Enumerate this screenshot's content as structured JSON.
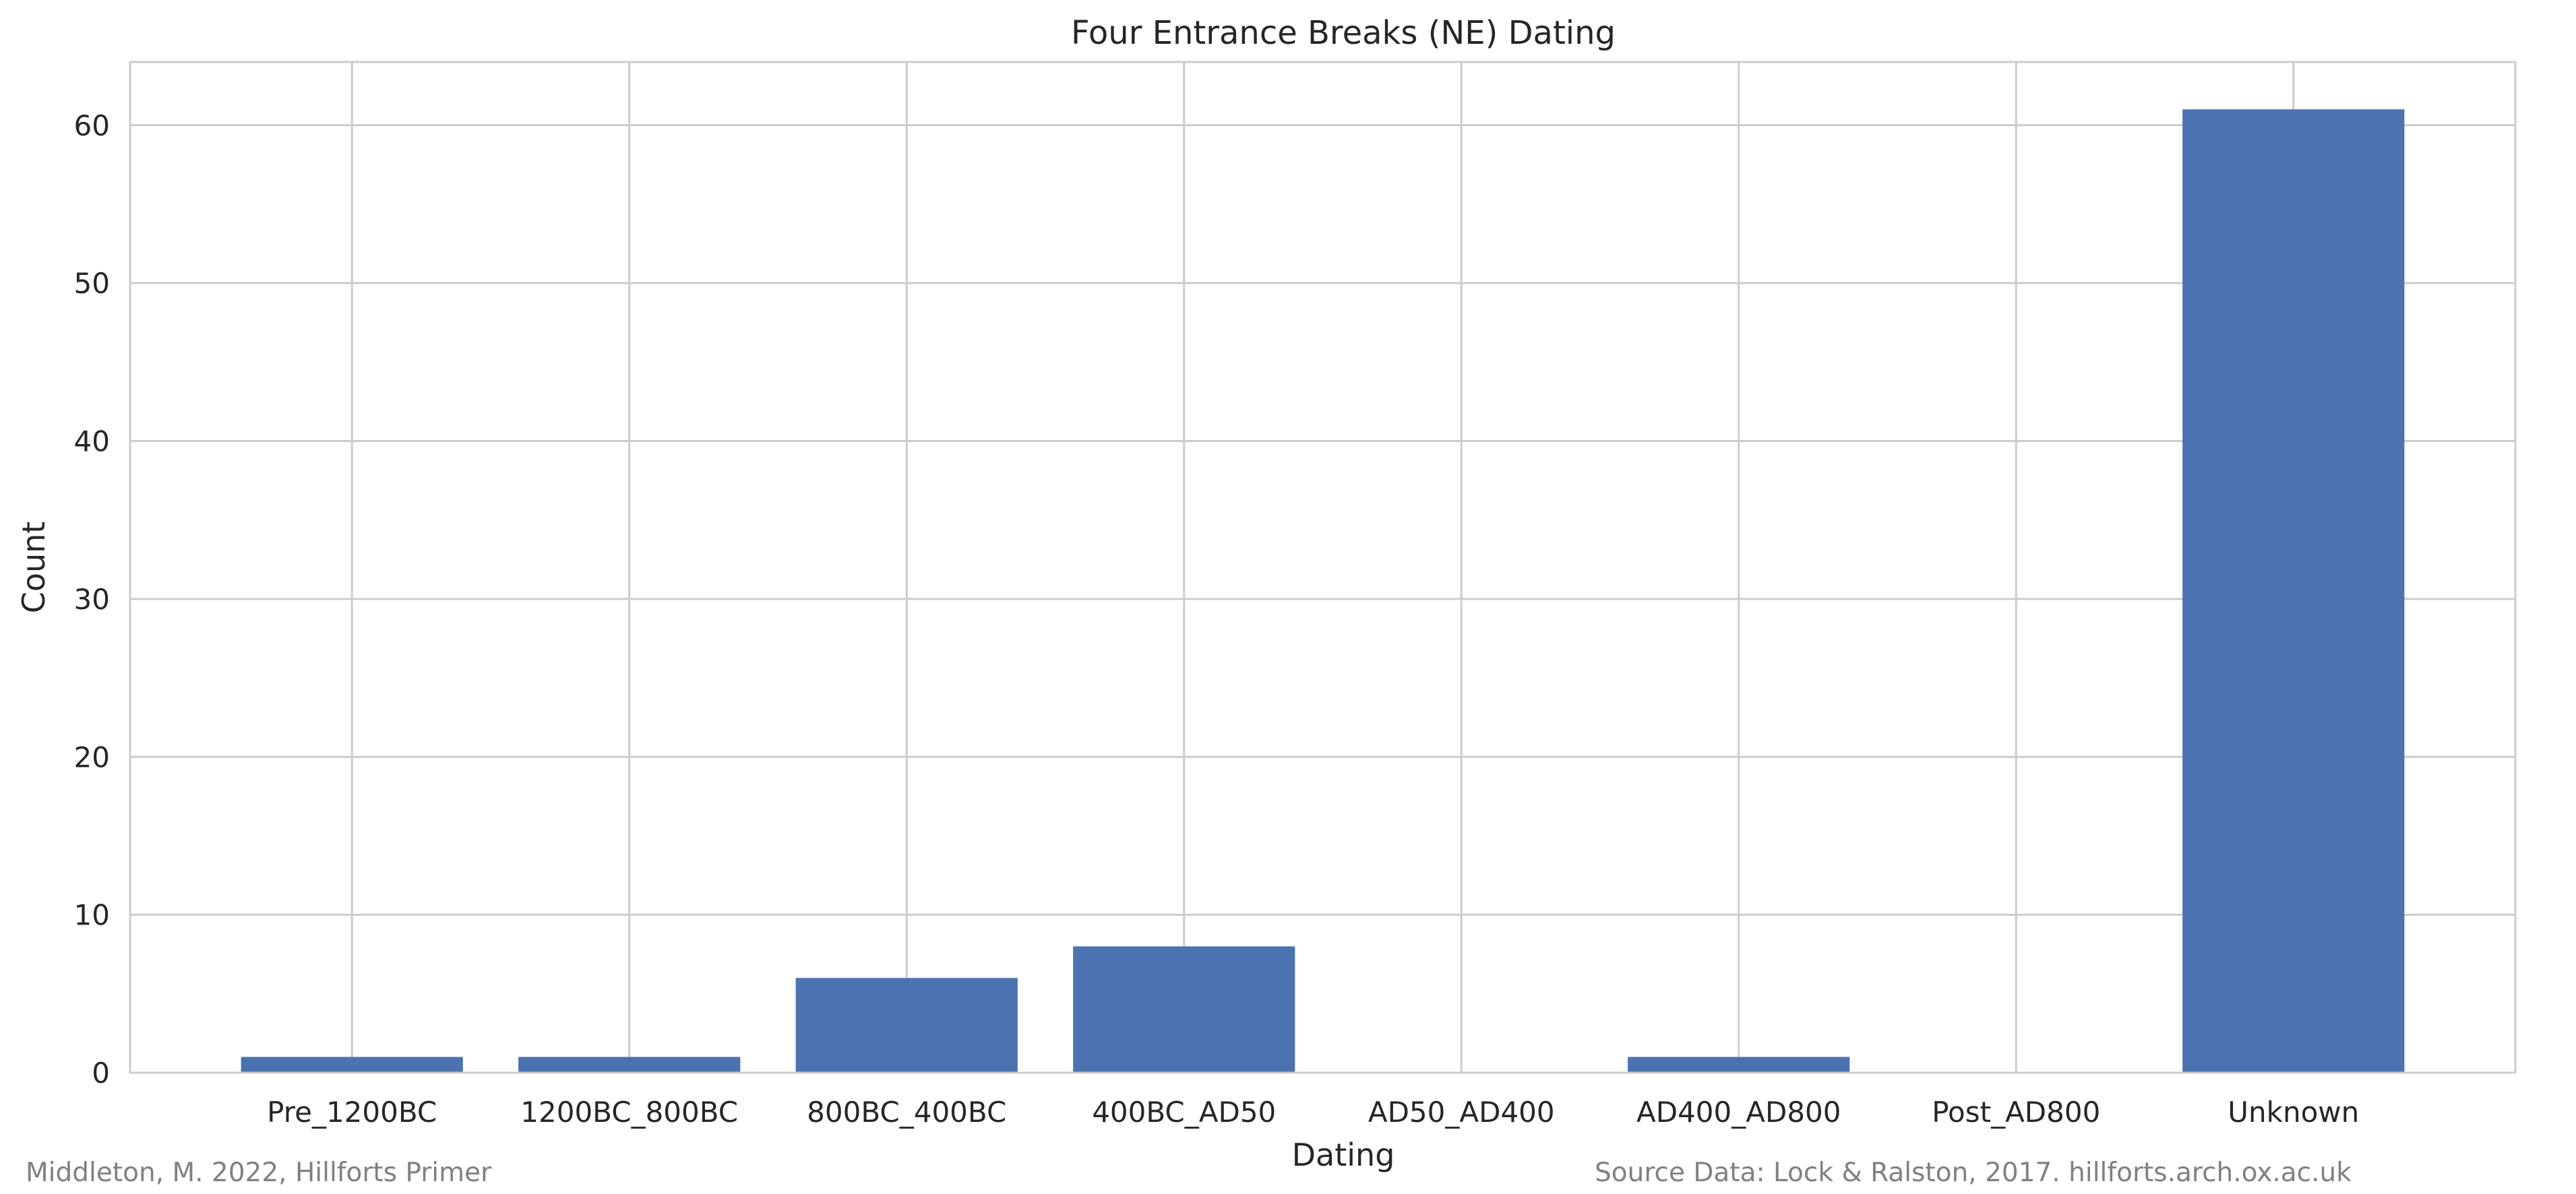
{
  "chart_data": {
    "type": "bar",
    "title": "Four Entrance Breaks (NE) Dating",
    "xlabel": "Dating",
    "ylabel": "Count",
    "categories": [
      "Pre_1200BC",
      "1200BC_800BC",
      "800BC_400BC",
      "400BC_AD50",
      "AD50_AD400",
      "AD400_AD800",
      "Post_AD800",
      "Unknown"
    ],
    "values": [
      1,
      1,
      6,
      8,
      0,
      1,
      0,
      61
    ],
    "ylim": [
      0,
      64
    ],
    "yticks": [
      0,
      10,
      20,
      30,
      40,
      50,
      60
    ],
    "grid": true,
    "bar_color": "#4c72b0",
    "grid_color": "#cccccc"
  },
  "footer": {
    "left_credit": "Middleton, M. 2022, Hillforts Primer",
    "right_credit": "Source Data: Lock & Ralston, 2017. hillforts.arch.ox.ac.uk"
  }
}
